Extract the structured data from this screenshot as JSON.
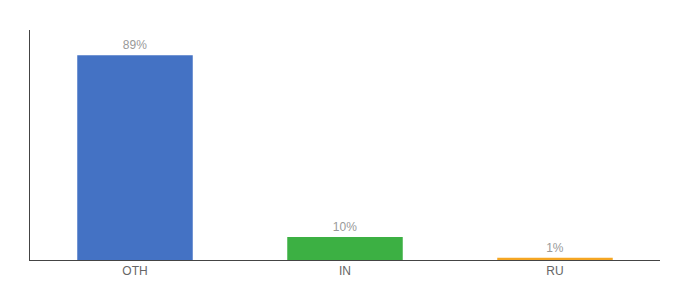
{
  "chart_data": {
    "type": "bar",
    "categories": [
      "OTH",
      "IN",
      "RU"
    ],
    "values": [
      89,
      10,
      1
    ],
    "value_labels": [
      "89%",
      "10%",
      "1%"
    ],
    "data_labels": true,
    "colors": [
      "#4472c4",
      "#3cb043",
      "#f5a623"
    ],
    "ylim": [
      0,
      100
    ],
    "grid": false,
    "tick_labels": "x"
  }
}
